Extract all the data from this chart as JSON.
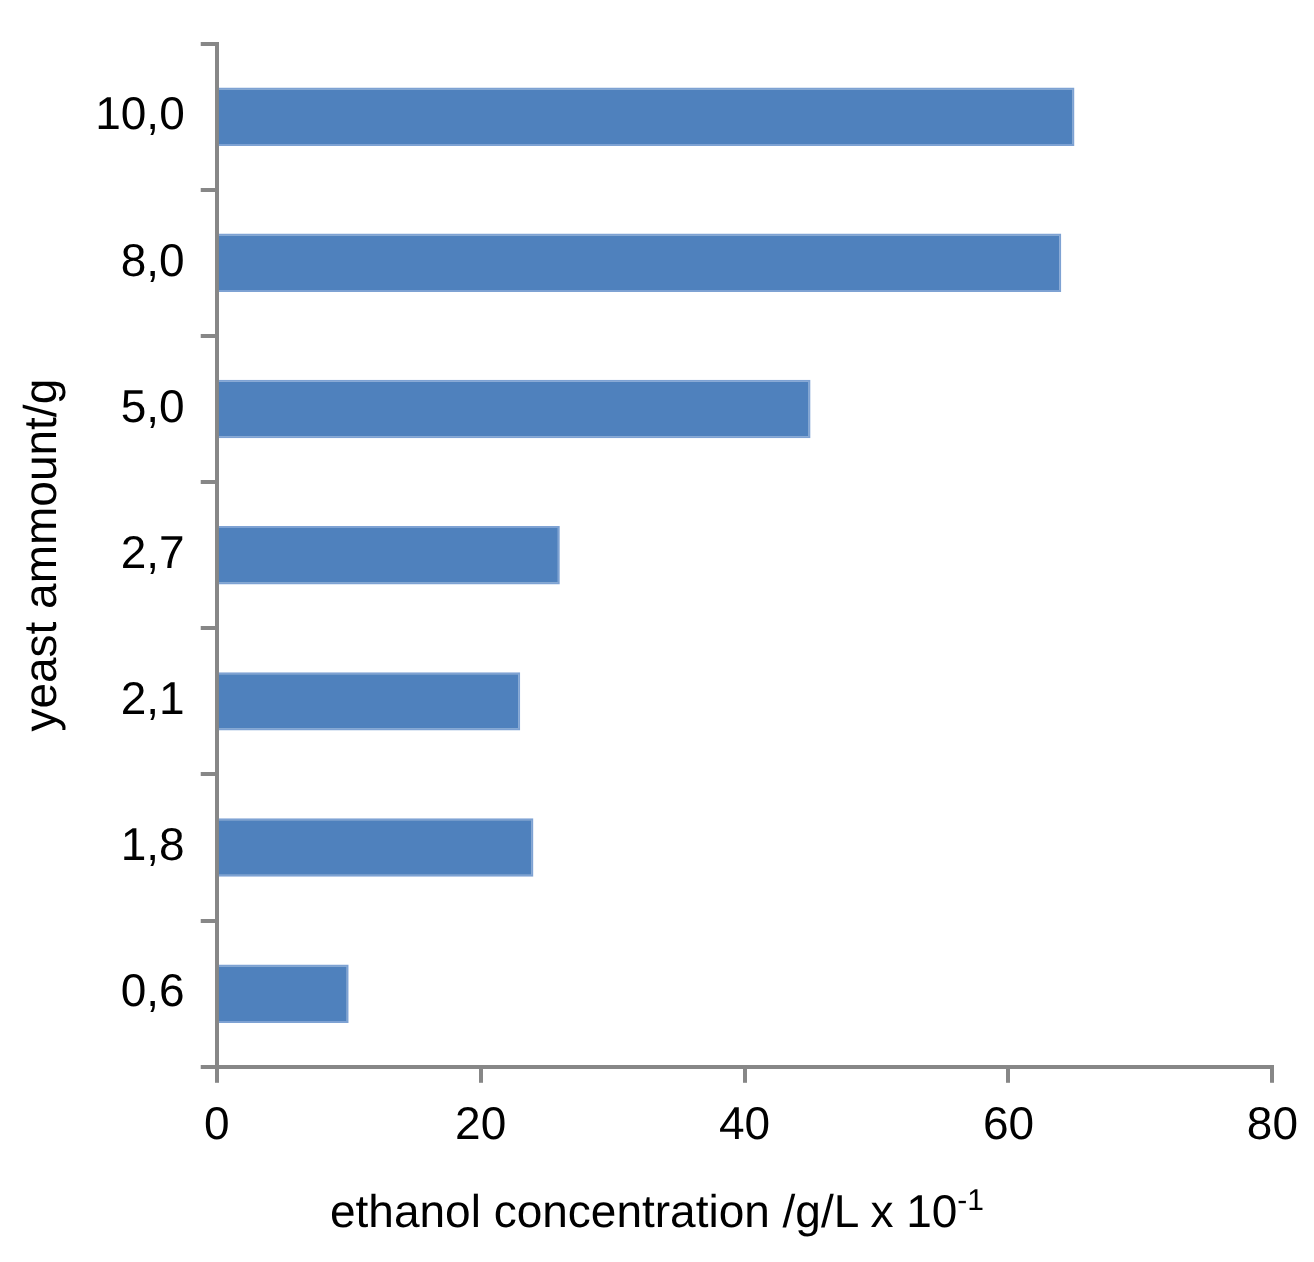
{
  "chart_data": {
    "type": "bar",
    "orientation": "horizontal",
    "categories": [
      "10,0",
      "8,0",
      "5,0",
      "2,7",
      "2,1",
      "1,8",
      "0,6"
    ],
    "values": [
      65,
      64,
      45,
      26,
      23,
      24,
      10
    ],
    "color": "#4f81bd",
    "xlim": [
      0,
      80
    ],
    "xticks": [
      0,
      20,
      40,
      60,
      80
    ],
    "grid": false,
    "xlabel": "ethanol concentration /g/L x 10$^{-1}$",
    "ylabel": "yeast ammount/g"
  }
}
